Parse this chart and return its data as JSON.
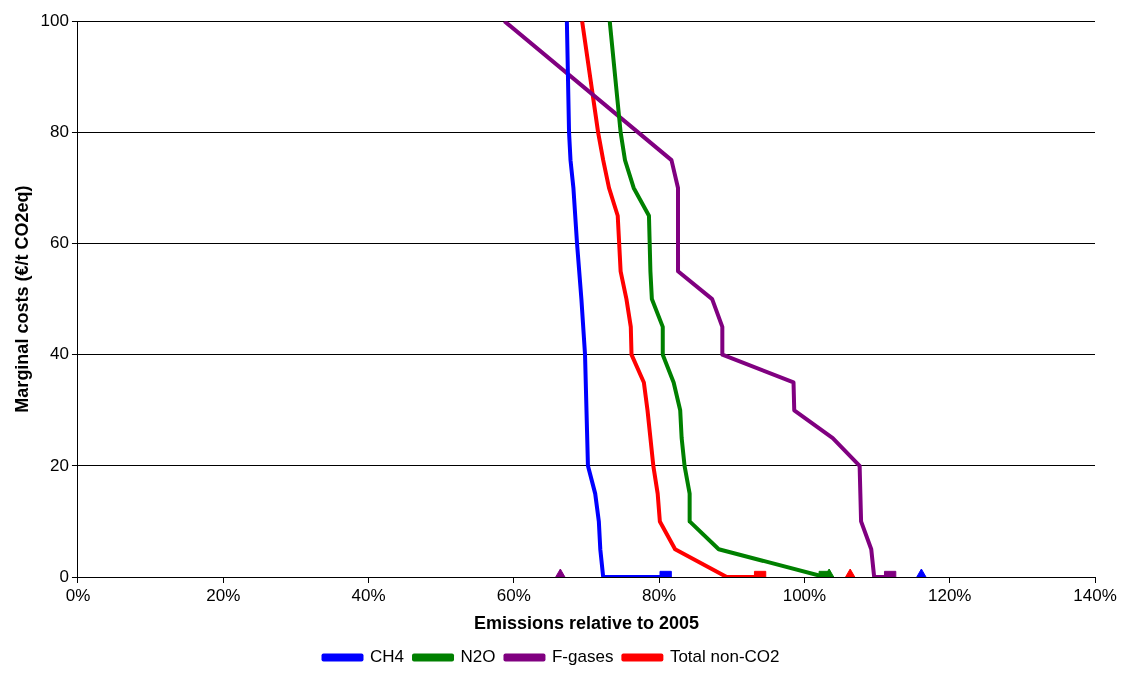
{
  "chart_data": {
    "type": "line",
    "xlabel": "Emissions relative to 2005",
    "ylabel": "Marginal costs (€/t CO2eq)",
    "xlim": [
      0,
      140
    ],
    "ylim": [
      0,
      100
    ],
    "xticks": [
      {
        "value": 0,
        "label": "0%"
      },
      {
        "value": 20,
        "label": "20%"
      },
      {
        "value": 40,
        "label": "40%"
      },
      {
        "value": 60,
        "label": "60%"
      },
      {
        "value": 80,
        "label": "80%"
      },
      {
        "value": 100,
        "label": "100%"
      },
      {
        "value": 120,
        "label": "120%"
      },
      {
        "value": 140,
        "label": "140%"
      }
    ],
    "yticks": [
      0,
      20,
      40,
      60,
      80,
      100
    ],
    "grid": "y",
    "legend": "bottom",
    "marker": "none",
    "line_style": "solid",
    "series": [
      {
        "name": "CH4",
        "color": "#0000ff",
        "x": [
          67.3,
          67.6,
          67.8,
          68.2,
          68.7,
          69.3,
          69.8,
          70.0,
          70.2,
          71.2,
          71.7,
          71.9,
          72.3,
          80.9
        ],
        "values": [
          100,
          80,
          75,
          70,
          60,
          50,
          40,
          30,
          20,
          15,
          10,
          5,
          0,
          0
        ]
      },
      {
        "name": "N2O",
        "color": "#008000",
        "x": [
          73.2,
          74.7,
          75.3,
          76.5,
          78.6,
          78.7,
          78.8,
          79.0,
          80.5,
          80.5,
          82.0,
          82.9,
          83.1,
          83.5,
          84.2,
          84.2,
          88.2,
          102.8
        ],
        "values": [
          100,
          80,
          75,
          70,
          65,
          60,
          55,
          50,
          45,
          40,
          35,
          30,
          25,
          20,
          15,
          10,
          5,
          0
        ]
      },
      {
        "name": "F-gases",
        "color": "#800080",
        "x": [
          58.7,
          81.7,
          82.6,
          82.6,
          87.3,
          88.7,
          88.7,
          98.5,
          98.6,
          103.9,
          107.6,
          107.7,
          107.8,
          109.2,
          109.6,
          111.8
        ],
        "values": [
          100,
          75,
          70,
          55,
          50,
          45,
          40,
          35,
          30,
          25,
          20,
          15,
          10,
          5,
          0,
          0
        ]
      },
      {
        "name": "Total non-CO2",
        "color": "#ff0000",
        "x": [
          69.4,
          71.6,
          72.3,
          73.1,
          74.3,
          74.5,
          74.7,
          75.5,
          76.1,
          76.2,
          77.9,
          78.4,
          78.8,
          79.2,
          79.8,
          80.1,
          82.2,
          89.3,
          93.9
        ],
        "values": [
          100,
          80,
          75,
          70,
          65,
          60,
          55,
          50,
          45,
          40,
          35,
          30,
          25,
          20,
          15,
          10,
          5,
          0,
          0
        ]
      },
      {
        "type": "scatter",
        "marker": "square",
        "color": "#0000ff",
        "x": [
          80.9
        ],
        "values": [
          0
        ]
      },
      {
        "type": "scatter",
        "marker": "square",
        "color": "#008000",
        "x": [
          102.8
        ],
        "values": [
          0
        ]
      },
      {
        "type": "scatter",
        "marker": "square",
        "color": "#800080",
        "x": [
          111.8
        ],
        "values": [
          0
        ]
      },
      {
        "type": "scatter",
        "marker": "square",
        "color": "#ff0000",
        "x": [
          93.9
        ],
        "values": [
          0
        ]
      },
      {
        "type": "scatter",
        "marker": "triangle",
        "color": "#0000ff",
        "x": [
          116.1
        ],
        "values": [
          0
        ]
      },
      {
        "type": "scatter",
        "marker": "triangle",
        "color": "#008000",
        "x": [
          103.4
        ],
        "values": [
          0
        ]
      },
      {
        "type": "scatter",
        "marker": "triangle",
        "color": "#800080",
        "x": [
          66.4
        ],
        "values": [
          0
        ]
      },
      {
        "type": "scatter",
        "marker": "triangle",
        "color": "#ff0000",
        "x": [
          106.3
        ],
        "values": [
          0
        ]
      }
    ]
  }
}
